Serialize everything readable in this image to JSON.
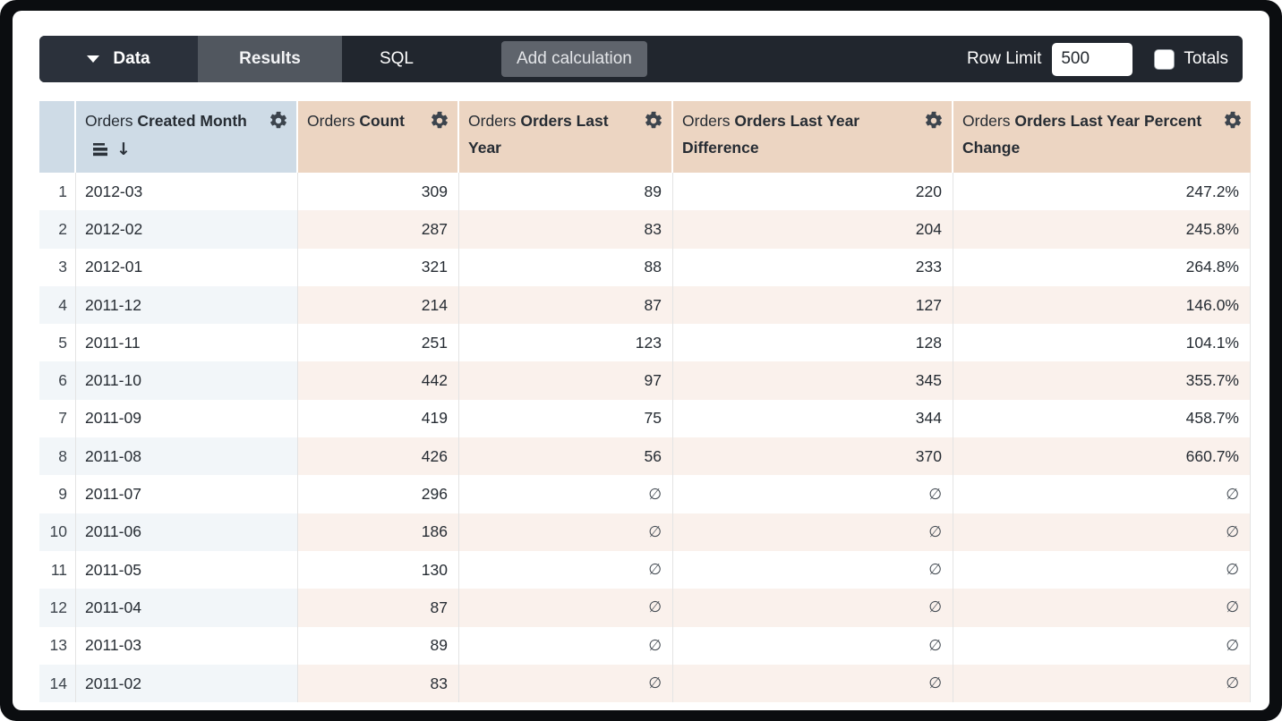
{
  "toolbar": {
    "data_tab": "Data",
    "results_tab": "Results",
    "sql_tab": "SQL",
    "add_calculation": "Add calculation",
    "row_limit_label": "Row Limit",
    "row_limit_value": "500",
    "totals_label": "Totals",
    "totals_checked": false
  },
  "icons": {
    "caret": "dropdown caret-down triangle",
    "gear": "gear-settings outline",
    "bars": "stacked horizontal bars",
    "sort_arrow": "↓",
    "null_symbol": "∅"
  },
  "colors": {
    "toolbar_bg": "#21262e",
    "data_segment_bg": "#2b313b",
    "results_tab_bg": "#51575f",
    "add_calc_bg": "#5f646c",
    "dimension_header_bg": "#cedbe6",
    "measure_header_bg": "#ecd5c2",
    "even_row_dimension_bg": "#f2f6f9",
    "even_row_measure_bg": "#faf1ec",
    "text_dark": "#262c33"
  },
  "table": {
    "columns": [
      {
        "view": "Orders",
        "field": "Created Month",
        "type": "dimension",
        "sorted": true
      },
      {
        "view": "Orders",
        "field": "Count",
        "type": "measure",
        "sorted": false
      },
      {
        "view": "Orders",
        "field": "Orders Last Year",
        "type": "measure",
        "sorted": false
      },
      {
        "view": "Orders",
        "field": "Orders Last Year Difference",
        "type": "measure",
        "sorted": false
      },
      {
        "view": "Orders",
        "field": "Orders Last Year Percent Change",
        "type": "measure",
        "sorted": false
      }
    ],
    "null_symbol": "∅",
    "rows": [
      {
        "n": 1,
        "month": "2012-03",
        "count": "309",
        "last_year": "89",
        "difference": "220",
        "pct_change": "247.2%"
      },
      {
        "n": 2,
        "month": "2012-02",
        "count": "287",
        "last_year": "83",
        "difference": "204",
        "pct_change": "245.8%"
      },
      {
        "n": 3,
        "month": "2012-01",
        "count": "321",
        "last_year": "88",
        "difference": "233",
        "pct_change": "264.8%"
      },
      {
        "n": 4,
        "month": "2011-12",
        "count": "214",
        "last_year": "87",
        "difference": "127",
        "pct_change": "146.0%"
      },
      {
        "n": 5,
        "month": "2011-11",
        "count": "251",
        "last_year": "123",
        "difference": "128",
        "pct_change": "104.1%"
      },
      {
        "n": 6,
        "month": "2011-10",
        "count": "442",
        "last_year": "97",
        "difference": "345",
        "pct_change": "355.7%"
      },
      {
        "n": 7,
        "month": "2011-09",
        "count": "419",
        "last_year": "75",
        "difference": "344",
        "pct_change": "458.7%"
      },
      {
        "n": 8,
        "month": "2011-08",
        "count": "426",
        "last_year": "56",
        "difference": "370",
        "pct_change": "660.7%"
      },
      {
        "n": 9,
        "month": "2011-07",
        "count": "296",
        "last_year": null,
        "difference": null,
        "pct_change": null
      },
      {
        "n": 10,
        "month": "2011-06",
        "count": "186",
        "last_year": null,
        "difference": null,
        "pct_change": null
      },
      {
        "n": 11,
        "month": "2011-05",
        "count": "130",
        "last_year": null,
        "difference": null,
        "pct_change": null
      },
      {
        "n": 12,
        "month": "2011-04",
        "count": "87",
        "last_year": null,
        "difference": null,
        "pct_change": null
      },
      {
        "n": 13,
        "month": "2011-03",
        "count": "89",
        "last_year": null,
        "difference": null,
        "pct_change": null
      },
      {
        "n": 14,
        "month": "2011-02",
        "count": "83",
        "last_year": null,
        "difference": null,
        "pct_change": null
      }
    ]
  }
}
